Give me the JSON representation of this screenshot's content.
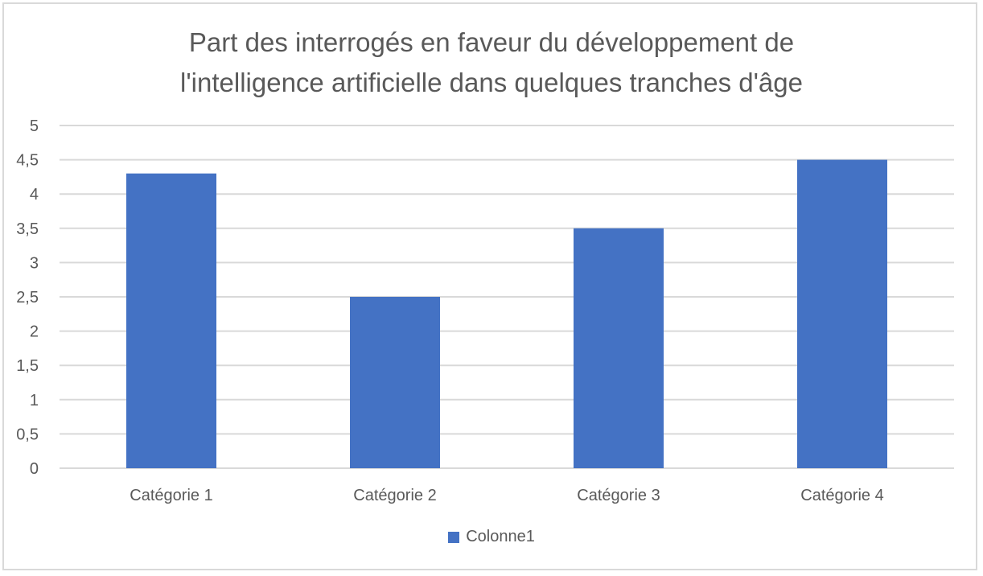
{
  "chart_data": {
    "type": "bar",
    "title_lines": [
      "Part des interrogés en faveur du développement de",
      "l'intelligence artificielle dans quelques tranches d'âge"
    ],
    "categories": [
      "Catégorie 1",
      "Catégorie 2",
      "Catégorie 3",
      "Catégorie 4"
    ],
    "series": [
      {
        "name": "Colonne1",
        "values": [
          4.3,
          2.5,
          3.5,
          4.5
        ],
        "color": "#4472c4"
      }
    ],
    "ylim": [
      0,
      5
    ],
    "y_ticks": [
      0,
      0.5,
      1,
      1.5,
      2,
      2.5,
      3,
      3.5,
      4,
      4.5,
      5
    ],
    "y_tick_labels": [
      "0",
      "0,5",
      "1",
      "1,5",
      "2",
      "2,5",
      "3",
      "3,5",
      "4",
      "4,5",
      "5"
    ],
    "grid": true,
    "gridline_color": "#d9d9d9",
    "legend_position": "bottom"
  }
}
